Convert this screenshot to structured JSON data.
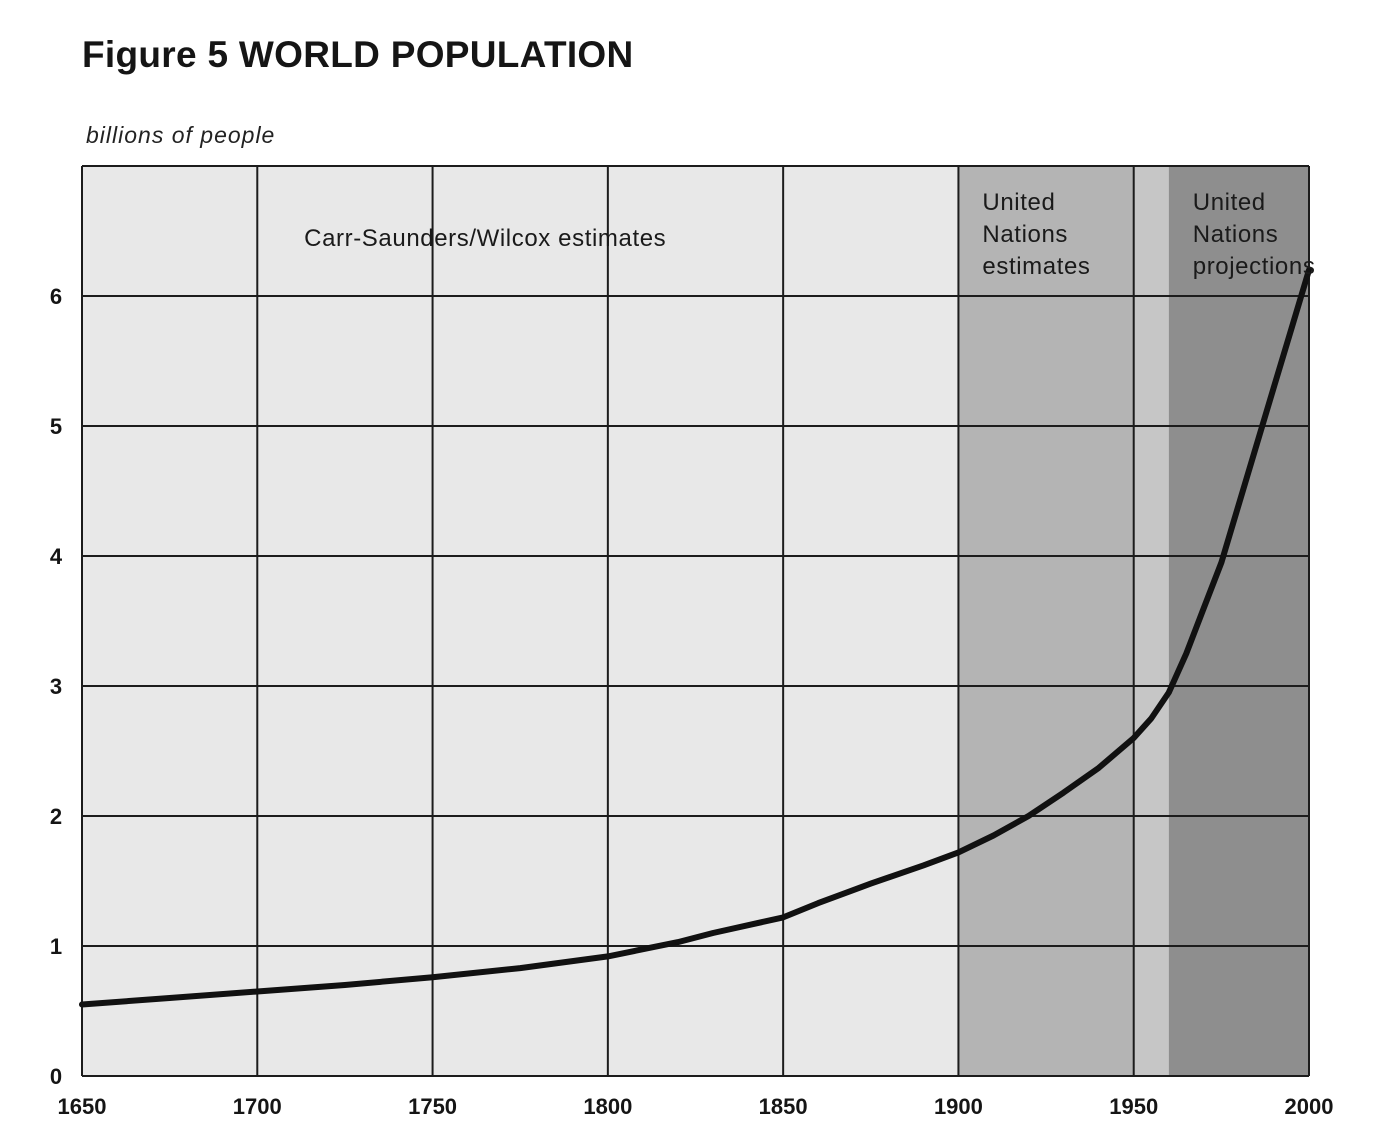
{
  "title": "Figure 5 WORLD POPULATION",
  "ylabel": "billions of people",
  "chart_data": {
    "type": "line",
    "title": "Figure 5 WORLD POPULATION",
    "xlabel": "",
    "ylabel": "billions of people",
    "xlim": [
      1650,
      2000
    ],
    "ylim": [
      0,
      7
    ],
    "x_ticks": [
      "1650",
      "1700",
      "1750",
      "1800",
      "1850",
      "1900",
      "1950",
      "2000"
    ],
    "y_ticks": [
      "0",
      "1",
      "2",
      "3",
      "4",
      "5",
      "6"
    ],
    "grid": true,
    "regions": [
      {
        "label": [
          "Carr-Saunders/Wilcox estimates"
        ],
        "x_range": [
          1650,
          1900
        ],
        "fill": "#e8e8e8"
      },
      {
        "label": [
          "United",
          "Nations",
          "estimates"
        ],
        "x_range": [
          1900,
          1950
        ],
        "fill": "#b4b4b4"
      },
      {
        "label": [],
        "x_range": [
          1950,
          1960
        ],
        "fill": "#c6c6c6"
      },
      {
        "label": [
          "United",
          "Nations",
          "projections"
        ],
        "x_range": [
          1960,
          2000
        ],
        "fill": "#8e8e8e"
      }
    ],
    "series": [
      {
        "color": "#111111",
        "x": [
          1650,
          1675,
          1700,
          1725,
          1750,
          1775,
          1800,
          1820,
          1830,
          1840,
          1850,
          1860,
          1875,
          1890,
          1900,
          1910,
          1920,
          1930,
          1940,
          1950,
          1955,
          1960,
          1965,
          1970,
          1975,
          1980,
          1985,
          1990,
          1995,
          2000
        ],
        "y": [
          0.55,
          0.6,
          0.65,
          0.7,
          0.76,
          0.83,
          0.92,
          1.03,
          1.1,
          1.16,
          1.22,
          1.33,
          1.48,
          1.62,
          1.72,
          1.85,
          2.0,
          2.18,
          2.37,
          2.6,
          2.75,
          2.95,
          3.25,
          3.6,
          3.95,
          4.4,
          4.85,
          5.3,
          5.75,
          6.2
        ]
      }
    ]
  }
}
